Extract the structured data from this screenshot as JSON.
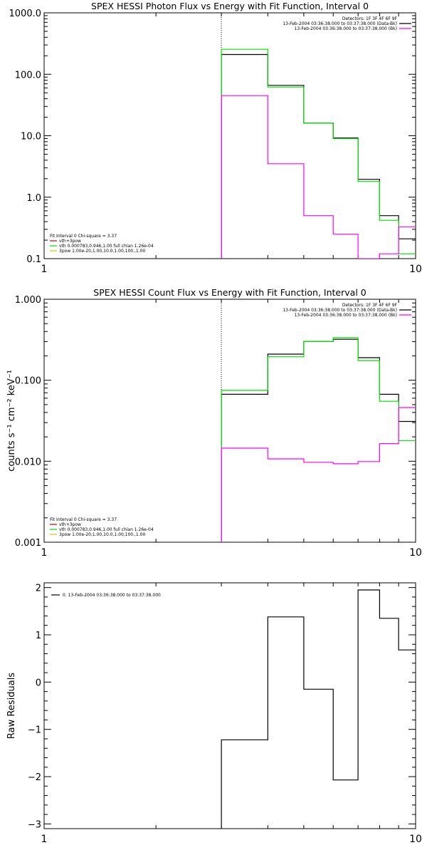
{
  "chart_data": [
    {
      "type": "line",
      "title": "SPEX HESSI Photon Flux vs Energy with Fit Function, Interval 0",
      "xlabel": "",
      "ylabel": "",
      "xscale": "log",
      "yscale": "log",
      "xlim": [
        1,
        10
      ],
      "ylim": [
        0.1,
        1000
      ],
      "xticks": [
        {
          "v": 1,
          "label": "1"
        },
        {
          "v": 10,
          "label": "10"
        }
      ],
      "yticks": [
        {
          "v": 0.1,
          "label": "0.1"
        },
        {
          "v": 1,
          "label": "1.0"
        },
        {
          "v": 10,
          "label": "10.0"
        },
        {
          "v": 100,
          "label": "100.0"
        },
        {
          "v": 1000,
          "label": "1000.0"
        }
      ],
      "vline": 3,
      "header": [
        "Detectors: 1F 3F 4F 6F 9F",
        "13-Feb-2004 03:36:38.000 to 03:37:38.000 (Data-Bk)",
        "13-Feb-2004 03:36:38.000 to 03:37:38.000 (Bk)"
      ],
      "legend_title": "Fit Interval 0   Chi-square = 3.37",
      "legend": [
        {
          "label": "vth+3pow",
          "color": "#d00000"
        },
        {
          "label": "vth 0.000783,0.946,1.00  full chian 1.26e-04",
          "color": "#00dd00"
        },
        {
          "label": "3pow 1.00e-20,1.00,10.0,1.00,100.,1.00",
          "color": "#e0c000"
        }
      ],
      "edges": [
        3,
        4,
        5,
        6,
        7,
        8,
        9,
        10
      ],
      "series": [
        {
          "role": "data",
          "color": "#000000",
          "values": [
            210,
            66,
            16,
            9.2,
            1.95,
            0.5,
            0.21
          ]
        },
        {
          "role": "model",
          "color": "#00dd00",
          "values": [
            255,
            62,
            16,
            9.0,
            1.8,
            0.42,
            0.12
          ]
        },
        {
          "role": "background",
          "color": "#ff00ff",
          "values": [
            45,
            3.5,
            0.5,
            0.25,
            0.095,
            0.12,
            0.33
          ]
        }
      ]
    },
    {
      "type": "line",
      "title": "SPEX HESSI Count Flux vs Energy with Fit Function, Interval 0",
      "xlabel": "",
      "ylabel": "counts s⁻¹ cm⁻² keV⁻¹",
      "xscale": "log",
      "yscale": "log",
      "xlim": [
        1,
        10
      ],
      "ylim": [
        0.001,
        1
      ],
      "xticks": [
        {
          "v": 1,
          "label": "1"
        },
        {
          "v": 10,
          "label": "10"
        }
      ],
      "yticks": [
        {
          "v": 0.001,
          "label": "0.001"
        },
        {
          "v": 0.01,
          "label": "0.010"
        },
        {
          "v": 0.1,
          "label": "0.100"
        },
        {
          "v": 1,
          "label": "1.000"
        }
      ],
      "vline": 3,
      "header": [
        "Detectors: 1F 3F 4F 6F 9F",
        "13-Feb-2004 03:36:38.000 to 03:37:38.000 (Data-Bk)",
        "13-Feb-2004 03:36:38.000 to 03:37:38.000 (Bk)"
      ],
      "legend_title": "Fit Interval 0   Chi-square = 3.37",
      "legend": [
        {
          "label": "vth+3pow",
          "color": "#d00000"
        },
        {
          "label": "vth 0.000783,0.946,1.00  full chian 1.26e-04",
          "color": "#00dd00"
        },
        {
          "label": "3pow 1.00e-20,1.00,10.0,1.00,100.,1.00",
          "color": "#e0c000"
        }
      ],
      "edges": [
        3,
        4,
        5,
        6,
        7,
        8,
        9,
        10
      ],
      "series": [
        {
          "role": "data",
          "color": "#000000",
          "values": [
            0.067,
            0.21,
            0.3,
            0.32,
            0.19,
            0.067,
            0.031
          ]
        },
        {
          "role": "model",
          "color": "#00dd00",
          "values": [
            0.075,
            0.195,
            0.3,
            0.335,
            0.175,
            0.055,
            0.018
          ]
        },
        {
          "role": "background",
          "color": "#ff00ff",
          "values": [
            0.0145,
            0.0107,
            0.0097,
            0.0093,
            0.0099,
            0.0165,
            0.046
          ]
        }
      ]
    },
    {
      "type": "line",
      "title": "",
      "xlabel": "",
      "ylabel": "Raw Residuals",
      "xscale": "log",
      "yscale": "linear",
      "xlim": [
        1,
        10
      ],
      "ylim": [
        -3.1,
        2.1
      ],
      "xticks": [
        {
          "v": 1,
          "label": "1"
        },
        {
          "v": 10,
          "label": "10"
        }
      ],
      "yticks": [
        {
          "v": -3,
          "label": "−3"
        },
        {
          "v": -2,
          "label": "−2"
        },
        {
          "v": -1,
          "label": "−1"
        },
        {
          "v": 0,
          "label": "0"
        },
        {
          "v": 1,
          "label": "1"
        },
        {
          "v": 2,
          "label": "2"
        }
      ],
      "legend": [
        {
          "label": "0. 13-Feb-2004 03:36:38.000 to 03:37:38.000",
          "color": "#000000"
        }
      ],
      "edges": [
        3,
        4,
        5,
        6,
        7,
        8,
        9,
        10
      ],
      "series": [
        {
          "role": "residual",
          "color": "#000000",
          "values": [
            -1.22,
            1.38,
            -0.15,
            -2.07,
            1.95,
            1.35,
            0.68
          ]
        }
      ]
    }
  ]
}
